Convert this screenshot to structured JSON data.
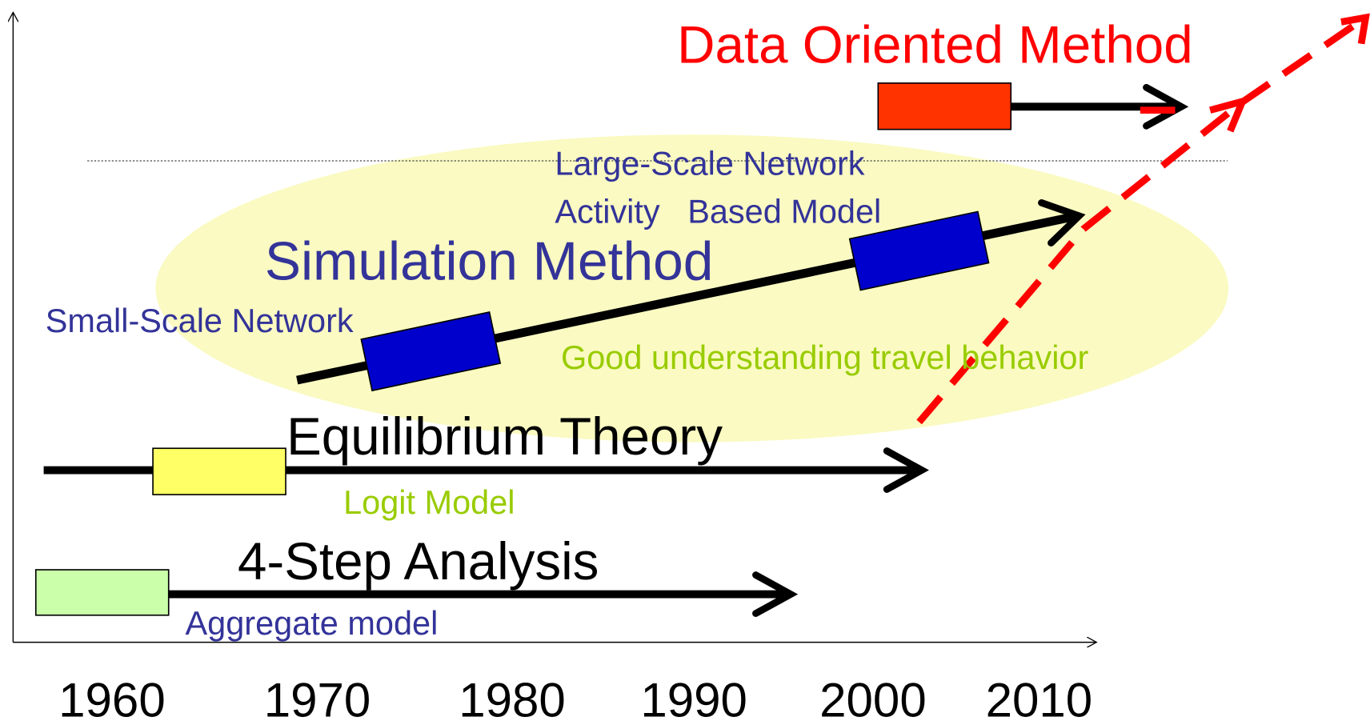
{
  "data_oriented": {
    "title": "Data Oriented Method"
  },
  "simulation": {
    "title": "Simulation Method",
    "notes": [
      "Large-Scale Network",
      "Activity   Based Model",
      "Small-Scale Network",
      "Good understanding travel behavior"
    ]
  },
  "equilibrium": {
    "title": "Equilibrium Theory",
    "notes": [
      "Logit Model"
    ]
  },
  "four_step": {
    "title": "4-Step Analysis",
    "notes": [
      "Aggregate model"
    ]
  },
  "x_axis": {
    "labels": [
      "1960",
      "1970",
      "1980",
      "1990",
      "2000",
      "2010"
    ]
  }
}
